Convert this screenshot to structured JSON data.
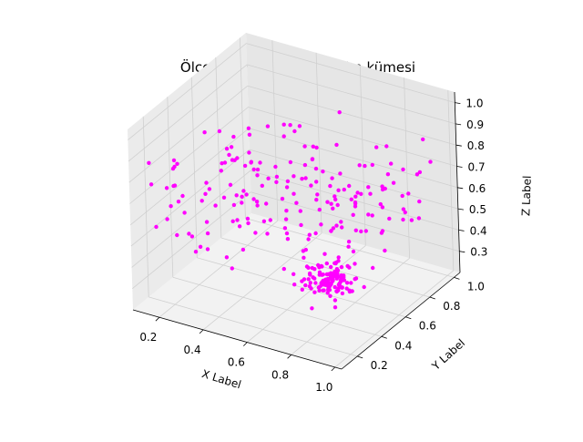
{
  "chart_data": {
    "type": "scatter",
    "projection": "3d",
    "title": "Ölçeklenme sonrası eğitim kümesi",
    "xlabel": "X Label",
    "ylabel": "Y Label",
    "zlabel": "Z Label",
    "xlim": [
      0.08,
      1.03
    ],
    "ylim": [
      0.07,
      1.05
    ],
    "zlim": [
      0.2,
      1.05
    ],
    "xticks": [
      "0.2",
      "0.4",
      "0.6",
      "0.8",
      "1.0"
    ],
    "yticks": [
      "0.2",
      "0.4",
      "0.6",
      "0.8",
      "1.0"
    ],
    "zticks": [
      "0.3",
      "0.4",
      "0.5",
      "0.6",
      "0.7",
      "0.8",
      "0.9",
      "1.0"
    ],
    "grid": true,
    "marker_color": "#ff00ff",
    "series": [
      {
        "cluster_center": [
          0.72,
          0.55,
          0.3
        ],
        "cluster_spread": [
          0.05,
          0.05,
          0.03
        ],
        "cluster_count": 120,
        "diffuse_ranges": {
          "x": [
            0.1,
            1.0
          ],
          "y": [
            0.1,
            1.0
          ],
          "z": [
            0.45,
            0.85
          ]
        },
        "diffuse_count": 200
      }
    ]
  }
}
